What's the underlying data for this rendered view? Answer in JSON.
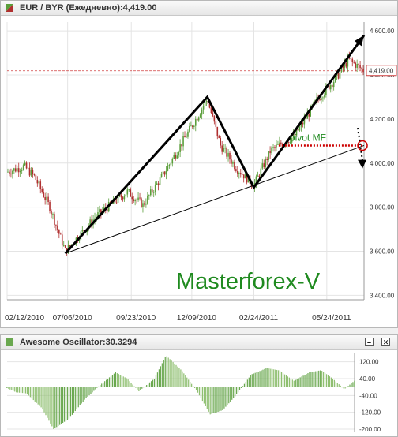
{
  "main_panel": {
    "title": "EUR / BYR (Ежедневно):4,419.00",
    "minimize_label": "",
    "close_label": ""
  },
  "osc_panel": {
    "title": "Awesome Oscillator:30.3294",
    "minimize_label": "–",
    "close_label": "✕"
  },
  "watermark": "Masterforex-V",
  "pivot_label": "pivot MF",
  "colors": {
    "up": "#5a9e3a",
    "down": "#b03030",
    "grid": "#e4e4e4",
    "watermark": "#1f8a1f",
    "pivot": "#cc0000"
  },
  "chart_data": [
    {
      "type": "candlestick",
      "title": "EUR / BYR (Ежедневно):4,419.00",
      "x_ticks": [
        "02/12/2010",
        "07/06/2010",
        "09/23/2010",
        "12/09/2010",
        "02/24/2011",
        "05/24/2011"
      ],
      "y_ticks": [
        3400,
        3600,
        3800,
        4000,
        4200,
        4400,
        4600
      ],
      "y_tick_labels": [
        "3,400.00",
        "3,600.00",
        "3,800.00",
        "4,000.00",
        "4,200.00",
        "4,400.00",
        "4,600.00"
      ],
      "ylim": [
        3380,
        4640
      ],
      "current_value": 4419,
      "current_label": "4,419.00",
      "grid": true,
      "close_anchors": [
        [
          0,
          3960
        ],
        [
          22,
          3985
        ],
        [
          35,
          3940
        ],
        [
          55,
          3800
        ],
        [
          75,
          3600
        ],
        [
          115,
          3760
        ],
        [
          155,
          3870
        ],
        [
          175,
          3810
        ],
        [
          200,
          3940
        ],
        [
          235,
          4150
        ],
        [
          258,
          4290
        ],
        [
          275,
          4080
        ],
        [
          295,
          3980
        ],
        [
          318,
          3900
        ],
        [
          340,
          4060
        ],
        [
          370,
          4120
        ],
        [
          400,
          4290
        ],
        [
          425,
          4390
        ],
        [
          440,
          4470
        ],
        [
          460,
          4419
        ]
      ],
      "pattern_lines": [
        {
          "style": "thick",
          "points": [
            [
              75,
              3590
            ],
            [
              258,
              4300
            ],
            [
              318,
              3890
            ],
            [
              460,
              4580
            ]
          ]
        },
        {
          "style": "thin",
          "points": [
            [
              75,
              3590
            ],
            [
              460,
              4080
            ]
          ]
        }
      ],
      "pivot": {
        "x_start": 350,
        "x_end": 458,
        "value": 4080,
        "label": "pivot MF"
      },
      "forecast_arrow": {
        "x": 458,
        "from": 4160,
        "to": 3990
      }
    },
    {
      "type": "histogram",
      "title": "Awesome Oscillator:30.3294",
      "y_ticks": [
        120,
        40,
        -40,
        -120,
        -200
      ],
      "y_tick_labels": [
        "120.00",
        "40.00",
        "-40.00",
        "-120.00",
        "-200.00"
      ],
      "ylim": [
        -215,
        160
      ],
      "last_value": 30.3294,
      "anchors": [
        [
          0,
          -5
        ],
        [
          12,
          -25
        ],
        [
          25,
          -30
        ],
        [
          45,
          -100
        ],
        [
          60,
          -200
        ],
        [
          80,
          -150
        ],
        [
          100,
          -60
        ],
        [
          120,
          10
        ],
        [
          140,
          70
        ],
        [
          155,
          40
        ],
        [
          170,
          -20
        ],
        [
          190,
          40
        ],
        [
          205,
          150
        ],
        [
          225,
          80
        ],
        [
          245,
          -20
        ],
        [
          262,
          -130
        ],
        [
          278,
          -110
        ],
        [
          295,
          -40
        ],
        [
          315,
          60
        ],
        [
          335,
          90
        ],
        [
          350,
          80
        ],
        [
          370,
          30
        ],
        [
          390,
          70
        ],
        [
          405,
          80
        ],
        [
          420,
          40
        ],
        [
          435,
          -10
        ],
        [
          448,
          30
        ]
      ]
    }
  ]
}
